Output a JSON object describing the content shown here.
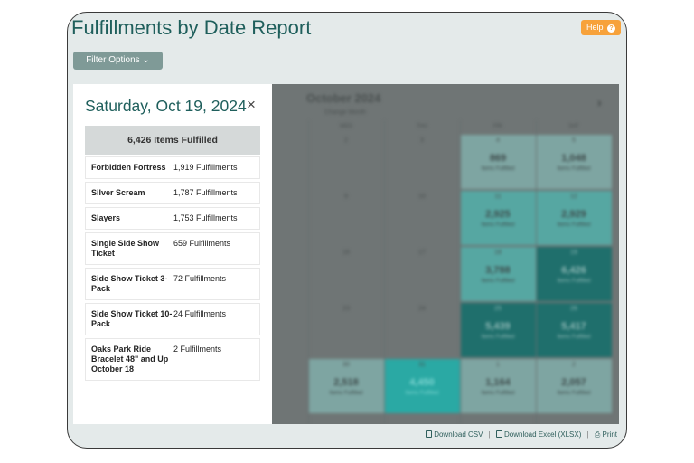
{
  "header": {
    "title": "Fulfillments by Date Report",
    "help_label": "Help",
    "help_icon": "question-circle-icon",
    "filter_label": "Filter Options ⌄"
  },
  "panel": {
    "date": "Saturday, Oct 19, 2024",
    "close": "×",
    "summary": "6,426 Items Fulfilled",
    "items": [
      {
        "name": "Forbidden Fortress",
        "count": "1,919 Fulfillments"
      },
      {
        "name": "Silver Scream",
        "count": "1,787 Fulfillments"
      },
      {
        "name": "Slayers",
        "count": "1,753 Fulfillments"
      },
      {
        "name": "Single Side Show Ticket",
        "count": "659 Fulfillments"
      },
      {
        "name": "Side Show Ticket 3-Pack",
        "count": "72 Fulfillments"
      },
      {
        "name": "Side Show Ticket 10-Pack",
        "count": "24 Fulfillments"
      },
      {
        "name": "Oaks Park Ride Bracelet 48\" and Up October 18",
        "count": "2 Fulfillments"
      }
    ]
  },
  "calendar": {
    "month": "October 2024",
    "change_month": "Change Month",
    "next": "›",
    "days": [
      "E",
      "WED",
      "THU",
      "FRI",
      "SAT"
    ],
    "unit_label": "Items Fulfilled",
    "rows": [
      [
        {
          "d": "2"
        },
        {
          "d": "3"
        },
        {
          "d": "4",
          "n": "869"
        },
        {
          "d": "5",
          "n": "1,048"
        }
      ],
      [
        {
          "d": "9"
        },
        {
          "d": "10"
        },
        {
          "d": "11",
          "n": "2,925"
        },
        {
          "d": "12",
          "n": "2,929"
        }
      ],
      [
        {
          "d": "16"
        },
        {
          "d": "17"
        },
        {
          "d": "18",
          "n": "3,788"
        },
        {
          "d": "19",
          "n": "6,426"
        }
      ],
      [
        {
          "d": "23"
        },
        {
          "d": "24"
        },
        {
          "d": "25",
          "n": "5,439"
        },
        {
          "d": "26",
          "n": "5,417"
        }
      ],
      [
        {
          "d": "30",
          "n": "2,518"
        },
        {
          "d": "31",
          "n": "4,450"
        },
        {
          "d": "1",
          "n": "1,164"
        },
        {
          "d": "2",
          "n": "2,057"
        }
      ]
    ]
  },
  "footer": {
    "csv": "Download CSV",
    "xlsx": "Download Excel (XLSX)",
    "print": "Print",
    "sep": "|"
  }
}
